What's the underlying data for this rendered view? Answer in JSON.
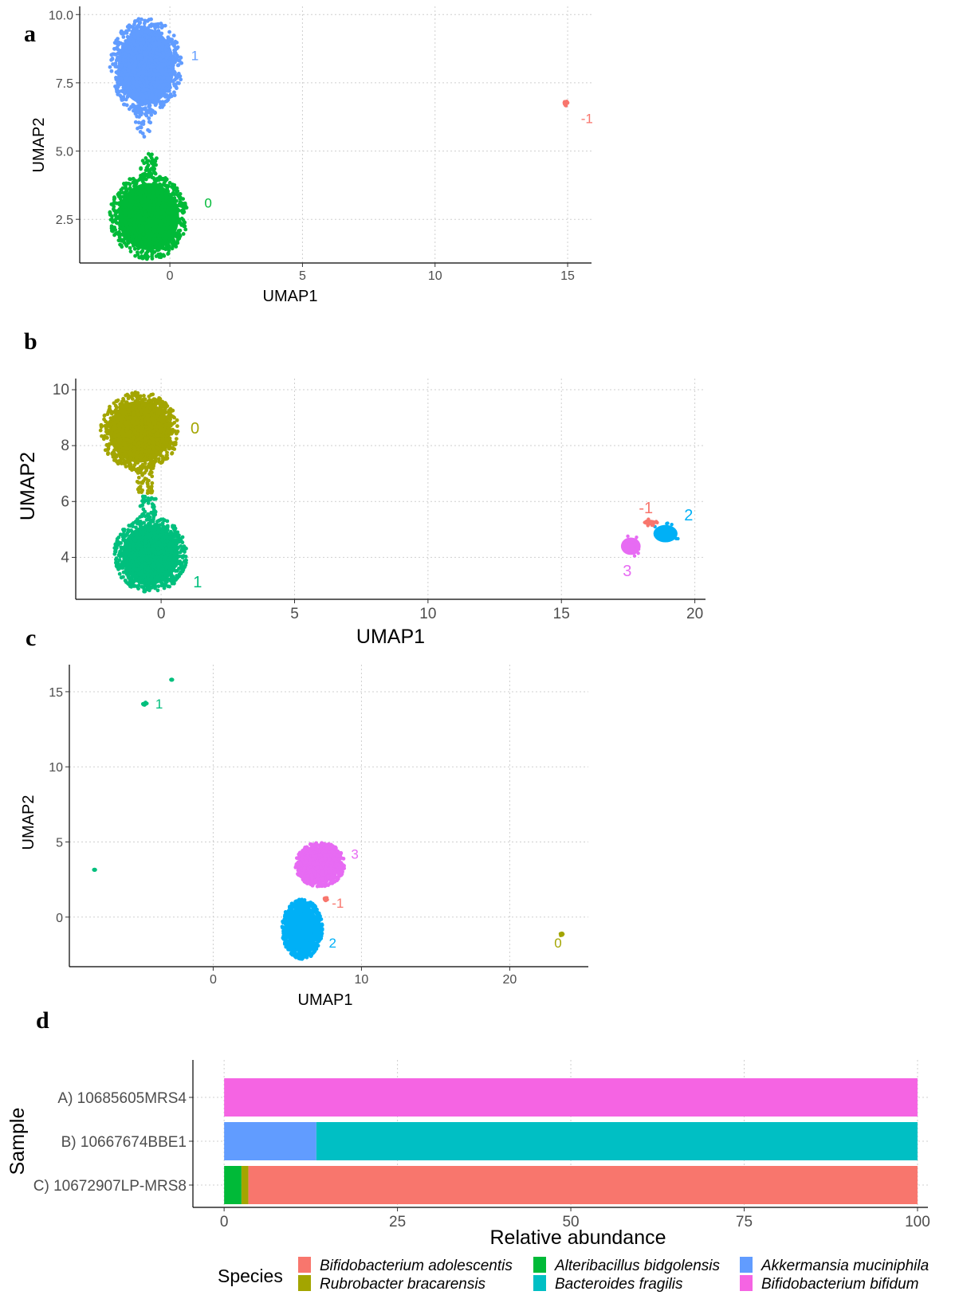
{
  "chart_data": [
    {
      "panel": "a",
      "type": "scatter",
      "xlabel": "UMAP1",
      "ylabel": "UMAP2",
      "xlim": [
        -3.4,
        15.9
      ],
      "ylim": [
        0.9,
        10.3
      ],
      "xticks": [
        0,
        5,
        10,
        15
      ],
      "xtick_labels": [
        "0",
        "5",
        "10",
        "15"
      ],
      "yticks": [
        2.5,
        5.0,
        7.5,
        10.0
      ],
      "ytick_labels": [
        "2.5",
        "5.0",
        "7.5",
        "10.0"
      ],
      "grid": true,
      "clusters": [
        {
          "name": "1",
          "color": "#619cff",
          "cx": -0.9,
          "cy": 8.1,
          "rx": 1.3,
          "ry": 1.7,
          "label_x": 0.8,
          "label_y": 8.5
        },
        {
          "name": "0",
          "color": "#00ba38",
          "cx": -0.8,
          "cy": 2.6,
          "rx": 1.4,
          "ry": 1.5,
          "label_x": 1.3,
          "label_y": 3.1
        },
        {
          "name": "-1",
          "color": "#f8766d",
          "cx": 14.95,
          "cy": 6.75,
          "rx": 0.08,
          "ry": 0.1,
          "label_x": 15.5,
          "label_y": 6.2
        }
      ],
      "bridges": [
        {
          "color": "#619cff",
          "x": -1.0,
          "y0": 5.5,
          "y1": 6.8
        },
        {
          "color": "#00ba38",
          "x": -0.8,
          "y0": 4.1,
          "y1": 4.9
        }
      ]
    },
    {
      "panel": "b",
      "type": "scatter",
      "xlabel": "UMAP1",
      "ylabel": "UMAP2",
      "xlim": [
        -3.2,
        20.4
      ],
      "ylim": [
        2.5,
        10.4
      ],
      "xticks": [
        0,
        5,
        10,
        15,
        20
      ],
      "xtick_labels": [
        "0",
        "5",
        "10",
        "15",
        "20"
      ],
      "yticks": [
        4,
        6,
        8,
        10
      ],
      "ytick_labels": [
        "4",
        "6",
        "8",
        "10"
      ],
      "grid": true,
      "clusters": [
        {
          "name": "0",
          "color": "#a3a500",
          "cx": -0.8,
          "cy": 8.5,
          "rx": 1.4,
          "ry": 1.35,
          "label_x": 1.1,
          "label_y": 8.6
        },
        {
          "name": "1",
          "color": "#00bf7d",
          "cx": -0.4,
          "cy": 4.1,
          "rx": 1.3,
          "ry": 1.3,
          "label_x": 1.2,
          "label_y": 3.1
        },
        {
          "name": "2",
          "color": "#00b0f6",
          "cx": 18.9,
          "cy": 4.85,
          "rx": 0.55,
          "ry": 0.38,
          "label_x": 19.6,
          "label_y": 5.5
        },
        {
          "name": "3",
          "color": "#e76bf3",
          "cx": 17.6,
          "cy": 4.4,
          "rx": 0.45,
          "ry": 0.38,
          "label_x": 17.3,
          "label_y": 3.5
        },
        {
          "name": "-1",
          "color": "#f8766d",
          "cx": 18.3,
          "cy": 5.25,
          "rx": 0.3,
          "ry": 0.12,
          "label_x": 17.9,
          "label_y": 5.75
        }
      ],
      "bridges": [
        {
          "color": "#a3a500",
          "x": -0.6,
          "y0": 6.3,
          "y1": 7.1
        },
        {
          "color": "#00bf7d",
          "x": -0.5,
          "y0": 5.4,
          "y1": 6.2
        }
      ]
    },
    {
      "panel": "c",
      "type": "scatter",
      "xlabel": "UMAP1",
      "ylabel": "UMAP2",
      "xlim": [
        -9.7,
        25.3
      ],
      "ylim": [
        -3.3,
        16.8
      ],
      "xticks": [
        0,
        10,
        20
      ],
      "xtick_labels": [
        "0",
        "10",
        "20"
      ],
      "yticks": [
        0,
        5,
        10,
        15
      ],
      "ytick_labels": [
        "0",
        "5",
        "10",
        "15"
      ],
      "grid": true,
      "clusters": [
        {
          "name": "3",
          "color": "#e76bf3",
          "cx": 7.2,
          "cy": 3.5,
          "rx": 1.6,
          "ry": 1.4,
          "label_x": 9.3,
          "label_y": 4.2
        },
        {
          "name": "2",
          "color": "#00b0f6",
          "cx": 6.0,
          "cy": -0.8,
          "rx": 1.3,
          "ry": 1.9,
          "label_x": 7.8,
          "label_y": -1.7
        },
        {
          "name": "1",
          "color": "#00bf7d",
          "cx": -4.6,
          "cy": 14.2,
          "rx": 0.15,
          "ry": 0.1,
          "label_x": -3.9,
          "label_y": 14.2
        },
        {
          "name": "-1",
          "color": "#f8766d",
          "cx": 7.6,
          "cy": 1.2,
          "rx": 0.15,
          "ry": 0.1,
          "label_x": 8.0,
          "label_y": 0.95
        },
        {
          "name": "0",
          "color": "#a3a500",
          "cx": 23.5,
          "cy": -1.15,
          "rx": 0.1,
          "ry": 0.1,
          "label_x": 23.0,
          "label_y": -1.7
        }
      ],
      "extra_points": [
        {
          "color": "#00bf7d",
          "x": -2.8,
          "y": 15.8
        },
        {
          "color": "#00bf7d",
          "x": -8.0,
          "y": 3.15
        }
      ],
      "bridges": []
    },
    {
      "panel": "d",
      "type": "bar",
      "orientation": "horizontal",
      "stacked": true,
      "xlabel": "Relative abundance",
      "ylabel": "Sample",
      "xlim": [
        -4.5,
        101.5
      ],
      "xticks": [
        0,
        25,
        50,
        75,
        100
      ],
      "xtick_labels": [
        "0",
        "25",
        "50",
        "75",
        "100"
      ],
      "grid": true,
      "legend_title": "Species",
      "legend_position": "bottom",
      "categories": [
        "A) 10685605MRS4",
        "B) 10667674BBE1",
        "C) 10672907LP-MRS8"
      ],
      "series": [
        {
          "name": "Alteribacillus bidgolensis",
          "color": "#00ba38",
          "values": [
            0,
            0,
            2.5
          ]
        },
        {
          "name": "Rubrobacter bracarensis",
          "color": "#a3a500",
          "values": [
            0,
            0,
            1.0
          ]
        },
        {
          "name": "Bifidobacterium adolescentis",
          "color": "#f8766d",
          "values": [
            0,
            0,
            96.5
          ]
        },
        {
          "name": "Akkermansia muciniphila",
          "color": "#619cff",
          "values": [
            0,
            13.3,
            0
          ]
        },
        {
          "name": "Bacteroides fragilis",
          "color": "#00bfc4",
          "values": [
            0,
            86.7,
            0
          ]
        },
        {
          "name": "Bifidobacterium bifidum",
          "color": "#f564e3",
          "values": [
            100,
            0,
            0
          ]
        }
      ],
      "legend_order": [
        "Bifidobacterium adolescentis",
        "Rubrobacter bracarensis",
        "Alteribacillus bidgolensis",
        "Bacteroides fragilis",
        "Akkermansia muciniphila",
        "Bifidobacterium bifidum"
      ]
    }
  ]
}
